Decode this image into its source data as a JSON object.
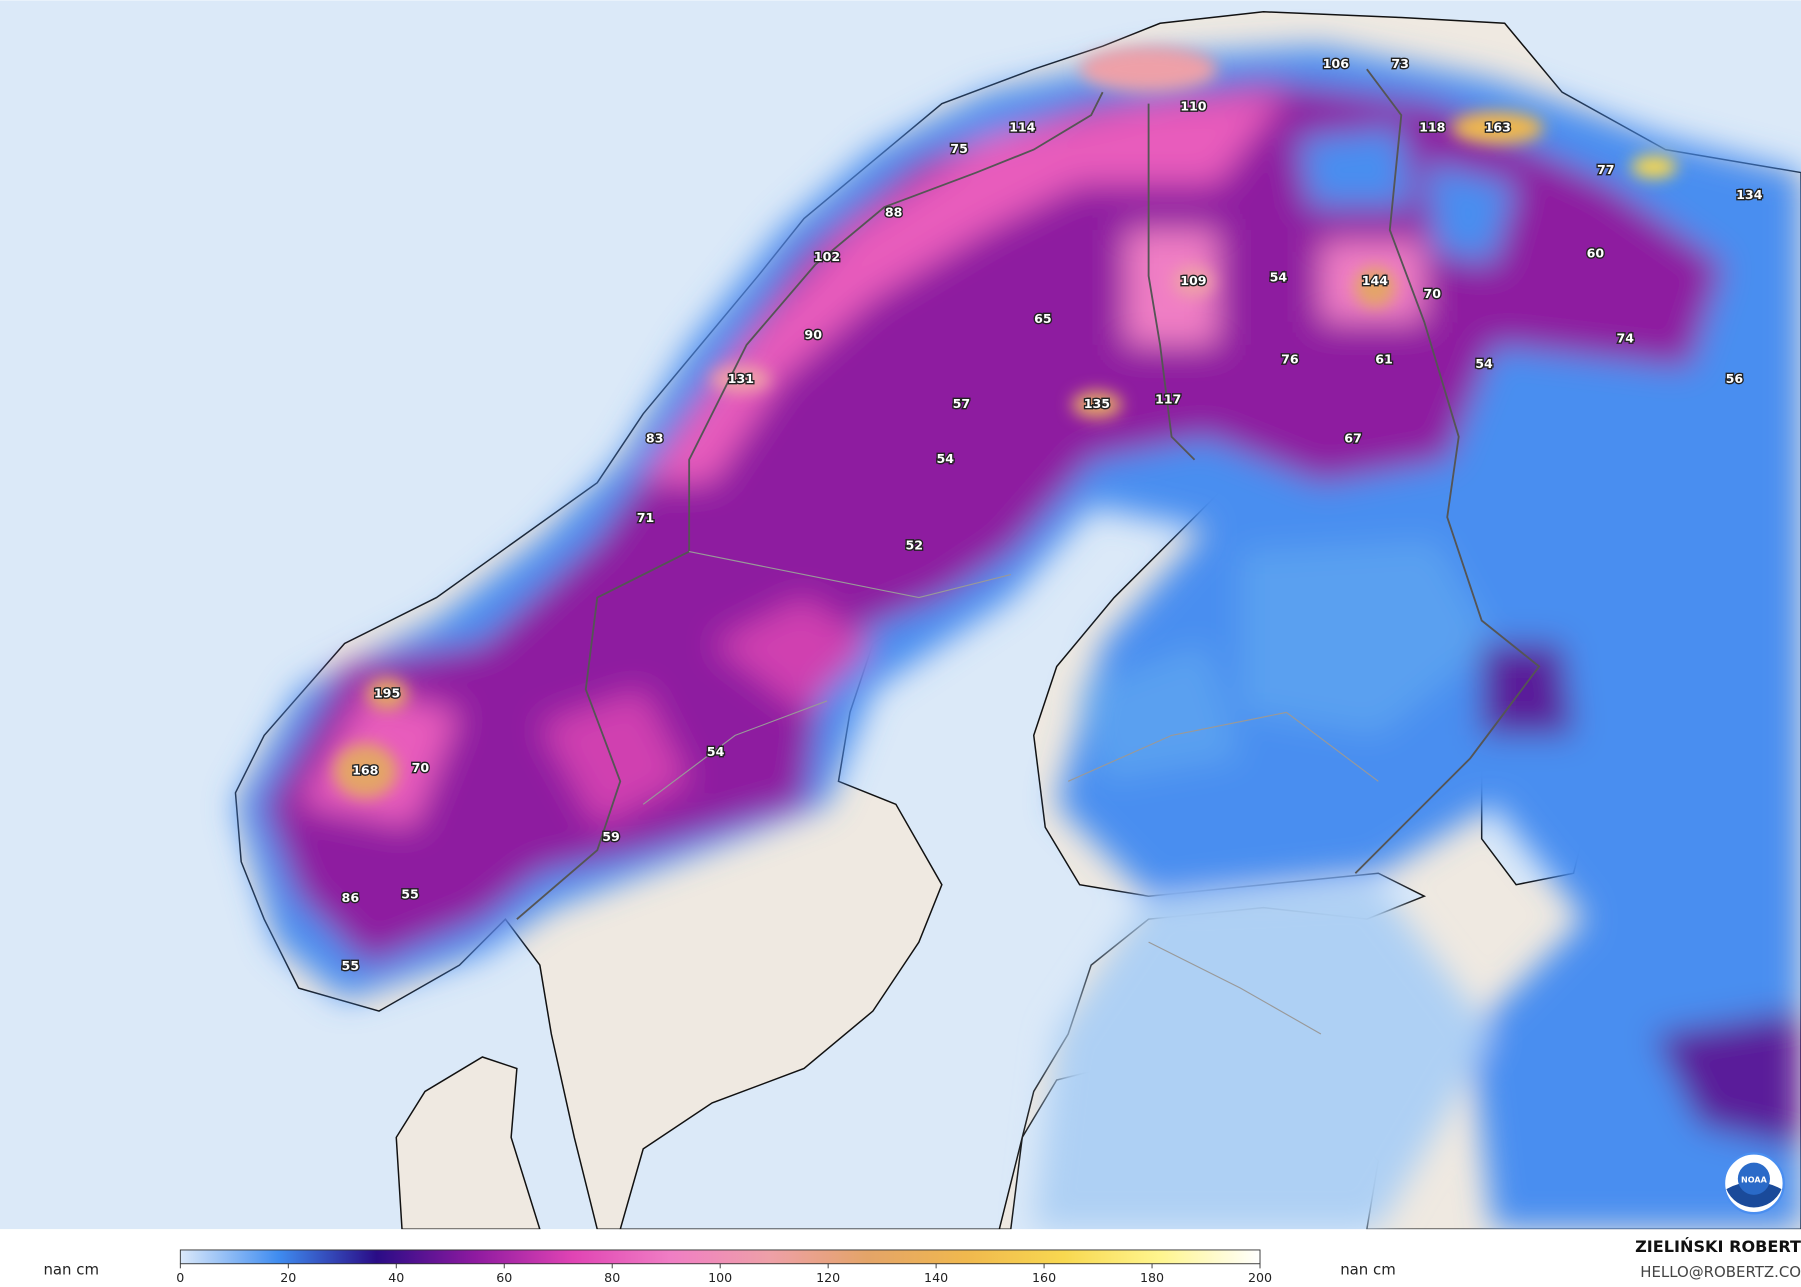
{
  "map": {
    "labels": [
      106,
      73,
      110,
      114,
      75,
      118,
      163,
      77,
      134,
      88,
      102,
      109,
      54,
      144,
      70,
      60,
      65,
      90,
      74,
      131,
      76,
      61,
      54,
      56,
      57,
      135,
      117,
      83,
      67,
      54,
      71,
      52,
      195,
      168,
      70,
      54,
      59,
      86,
      55,
      55
    ],
    "logo_text": "NOAA"
  },
  "colorbar": {
    "left_unit": "nan cm",
    "right_unit": "nan cm",
    "lim": [
      0,
      200
    ],
    "ticks": [
      0,
      20,
      40,
      60,
      80,
      100,
      120,
      140,
      160,
      180,
      200
    ],
    "colors": [
      "#dbe9fa",
      "#3f8cf0",
      "#2a0c86",
      "#8e1aa0",
      "#e044b4",
      "#f07ec4",
      "#eea0a8",
      "#e4a468",
      "#f0b84e",
      "#f8d850",
      "#fff690",
      "#ffffff"
    ]
  },
  "footer": {
    "author": "ZIELIŃSKI ROBERT",
    "email": "HELLO@ROBERTZ.CO"
  }
}
